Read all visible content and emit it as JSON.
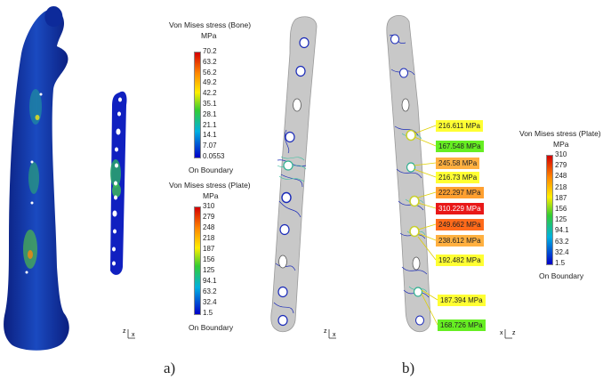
{
  "legend_bone": {
    "title": "Von Mises stress (Bone)",
    "unit": "MPa",
    "ticks": [
      "70.2",
      "63.2",
      "56.2",
      "49.2",
      "42.2",
      "35.1",
      "28.1",
      "21.1",
      "14.1",
      "7.07",
      "0.0553"
    ],
    "footer": "On Boundary"
  },
  "legend_plate_a": {
    "title": "Von Mises stress (Plate)",
    "unit": "MPa",
    "ticks": [
      "310",
      "279",
      "248",
      "218",
      "187",
      "156",
      "125",
      "94.1",
      "63.2",
      "32.4",
      "1.5"
    ],
    "footer": "On Boundary"
  },
  "legend_plate_b": {
    "title": "Von Mises stress (Plate)",
    "unit": "MPa",
    "ticks": [
      "310",
      "279",
      "248",
      "218",
      "187",
      "156",
      "125",
      "94.1",
      "63.2",
      "32.4",
      "1.5"
    ],
    "footer": "On Boundary"
  },
  "callouts": [
    {
      "label": "216.611 MPa",
      "color": "#ffff33"
    },
    {
      "label": "167.548 MPa",
      "color": "#66ee22"
    },
    {
      "label": "245.58 MPa",
      "color": "#ffb040"
    },
    {
      "label": "216.73 MPa",
      "color": "#ffff33"
    },
    {
      "label": "222.297 MPa",
      "color": "#ffa030"
    },
    {
      "label": "310.229 MPa",
      "color": "#e81818"
    },
    {
      "label": "249.662 MPa",
      "color": "#ff6a1a"
    },
    {
      "label": "238.612 MPa",
      "color": "#ffb040"
    },
    {
      "label": "192.482 MPa",
      "color": "#ffff33"
    },
    {
      "label": "187.394 MPa",
      "color": "#ffff33"
    },
    {
      "label": "168.726 MPa",
      "color": "#66ee22"
    }
  ],
  "axes": {
    "z": "z",
    "x": "x"
  },
  "captions": {
    "a": "a)",
    "b": "b)"
  },
  "colors": {
    "mesh_blue": "#1a2ab8",
    "plate_gray": "#c8c8c8",
    "bone_dark": "#0d2a9a"
  }
}
